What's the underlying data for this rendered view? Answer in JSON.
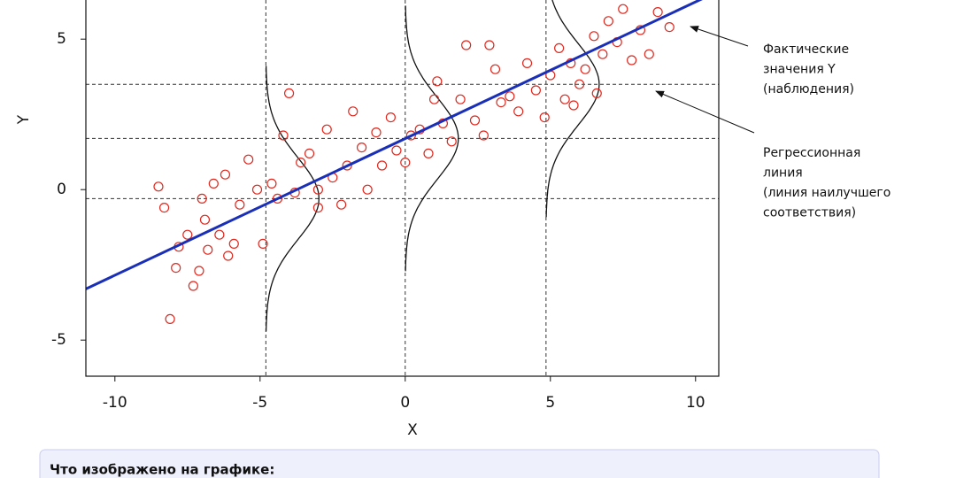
{
  "chart_data": {
    "type": "scatter",
    "x_label": "X",
    "y_label": "Y",
    "xlim": [
      -11,
      10.8
    ],
    "ylim": [
      -6.2,
      6.3
    ],
    "xticks": [
      -10,
      -5,
      0,
      5,
      10
    ],
    "yticks": [
      -5,
      0,
      5
    ],
    "points": {
      "color": "#e0291f",
      "x": [
        -8.5,
        -8.3,
        -8.1,
        -7.9,
        -7.8,
        -7.5,
        -7.3,
        -7.1,
        -6.9,
        -6.8,
        -6.6,
        -6.4,
        -6.2,
        -6.1,
        -5.9,
        -5.7,
        -5.4,
        -5.1,
        -4.9,
        -4.6,
        -4.4,
        -4.2,
        -4.0,
        -3.8,
        -3.6,
        -3.3,
        -3.0,
        -2.7,
        -2.5,
        -2.2,
        -2.0,
        -1.8,
        -1.5,
        -1.3,
        -1.0,
        -0.8,
        -0.5,
        -0.3,
        0.0,
        0.2,
        0.5,
        0.8,
        1.1,
        1.3,
        1.6,
        1.9,
        2.1,
        2.4,
        2.7,
        2.9,
        3.1,
        3.3,
        3.6,
        3.9,
        4.2,
        4.5,
        4.8,
        5.0,
        5.3,
        5.5,
        5.7,
        6.0,
        6.2,
        6.5,
        6.8,
        7.0,
        7.3,
        7.5,
        7.8,
        8.1,
        8.4,
        8.7,
        9.1,
        -7.0,
        -3.0,
        1.0,
        5.8,
        6.6
      ],
      "y": [
        0.1,
        -0.6,
        -4.3,
        -2.6,
        -1.9,
        -1.5,
        -3.2,
        -2.7,
        -1.0,
        -2.0,
        0.2,
        -1.5,
        0.5,
        -2.2,
        -1.8,
        -0.5,
        1.0,
        0.0,
        -1.8,
        0.2,
        -0.3,
        1.8,
        3.2,
        -0.1,
        0.9,
        1.2,
        -0.6,
        2.0,
        0.4,
        -0.5,
        0.8,
        2.6,
        1.4,
        0.0,
        1.9,
        0.8,
        2.4,
        1.3,
        0.9,
        1.8,
        2.0,
        1.2,
        3.6,
        2.2,
        1.6,
        3.0,
        4.8,
        2.3,
        1.8,
        4.8,
        4.0,
        2.9,
        3.1,
        2.6,
        4.2,
        3.3,
        2.4,
        3.8,
        4.7,
        3.0,
        4.2,
        3.5,
        4.0,
        5.1,
        4.5,
        5.6,
        4.9,
        6.0,
        4.3,
        5.3,
        4.5,
        5.9,
        5.4,
        -0.3,
        0.0,
        3.0,
        2.8,
        3.2
      ]
    },
    "regression": {
      "color": "#1a2fb8",
      "x": [
        -11,
        10.8
      ],
      "y": [
        -3.3,
        6.6
      ]
    },
    "reference_x": [
      -4.8,
      0,
      4.85
    ],
    "reference_y": [
      -0.3,
      1.7,
      3.5
    ],
    "annotations": [
      {
        "lines": [
          "Фактические",
          "значения Y",
          "(наблюдения)"
        ]
      },
      {
        "lines": [
          "Регрессионная",
          "линия",
          "(линия наилучшего",
          "соответствия)"
        ]
      }
    ]
  },
  "info_box": {
    "heading": "Что изображено на графике:"
  }
}
